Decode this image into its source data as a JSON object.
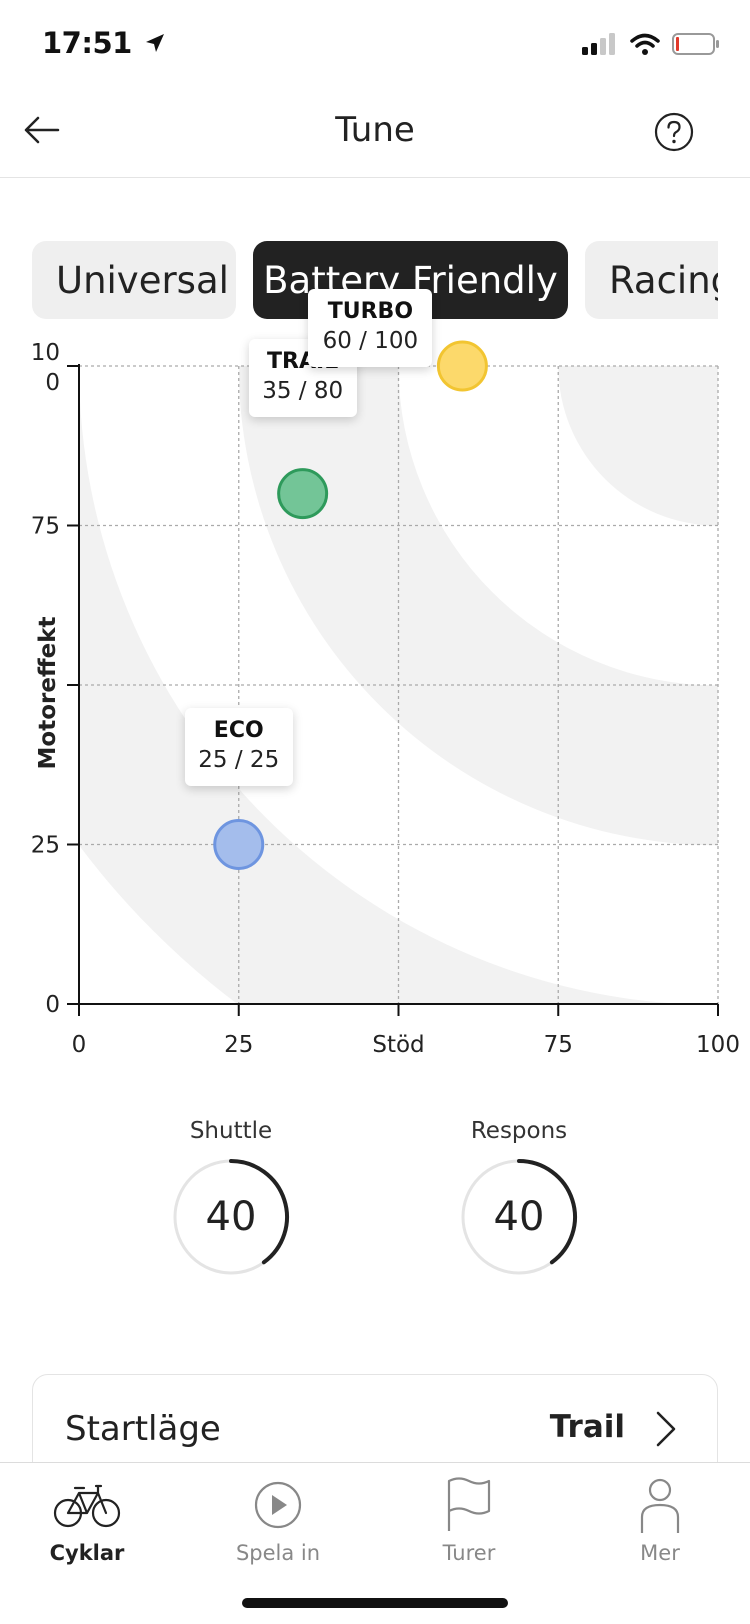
{
  "status_bar": {
    "time": "17:51"
  },
  "header": {
    "title": "Tune"
  },
  "mode_tabs": [
    {
      "label": "Universal",
      "active": false
    },
    {
      "label": "Battery Friendly",
      "active": true
    },
    {
      "label": "Racing",
      "active": false
    }
  ],
  "chart_data": {
    "type": "scatter",
    "xlabel": "Stöd",
    "ylabel": "Motoreffekt",
    "xlim": [
      0,
      100
    ],
    "ylim": [
      0,
      100
    ],
    "x_ticks": [
      "0",
      "25",
      "",
      "75",
      "100"
    ],
    "y_ticks": [
      "0",
      "25",
      "",
      "75",
      "10\n0"
    ],
    "grid": true,
    "points": [
      {
        "name": "ECO",
        "x": 25,
        "y": 25,
        "value_label": "25 / 25",
        "color": "#a4bdec",
        "stroke": "#6e95e0"
      },
      {
        "name": "TRAIL",
        "x": 35,
        "y": 80,
        "value_label": "35 / 80",
        "color": "#73c597",
        "stroke": "#2e9a5b"
      },
      {
        "name": "TURBO",
        "x": 60,
        "y": 100,
        "value_label": "60 / 100",
        "color": "#fcd96b",
        "stroke": "#f2c531"
      }
    ]
  },
  "dials": [
    {
      "label": "Shuttle",
      "value": "40",
      "fraction": 0.4
    },
    {
      "label": "Respons",
      "value": "40",
      "fraction": 0.4
    }
  ],
  "start_mode": {
    "label": "Startläge",
    "value": "Trail"
  },
  "tabbar": [
    {
      "label": "Cyklar",
      "icon": "bike-icon",
      "active": true
    },
    {
      "label": "Spela in",
      "icon": "play-icon",
      "active": false
    },
    {
      "label": "Turer",
      "icon": "flag-icon",
      "active": false
    },
    {
      "label": "Mer",
      "icon": "person-icon",
      "active": false
    }
  ],
  "colors": {
    "active_tab_bg": "#222222",
    "inactive_tab_bg": "#efefef",
    "band": "#f2f2f2"
  }
}
